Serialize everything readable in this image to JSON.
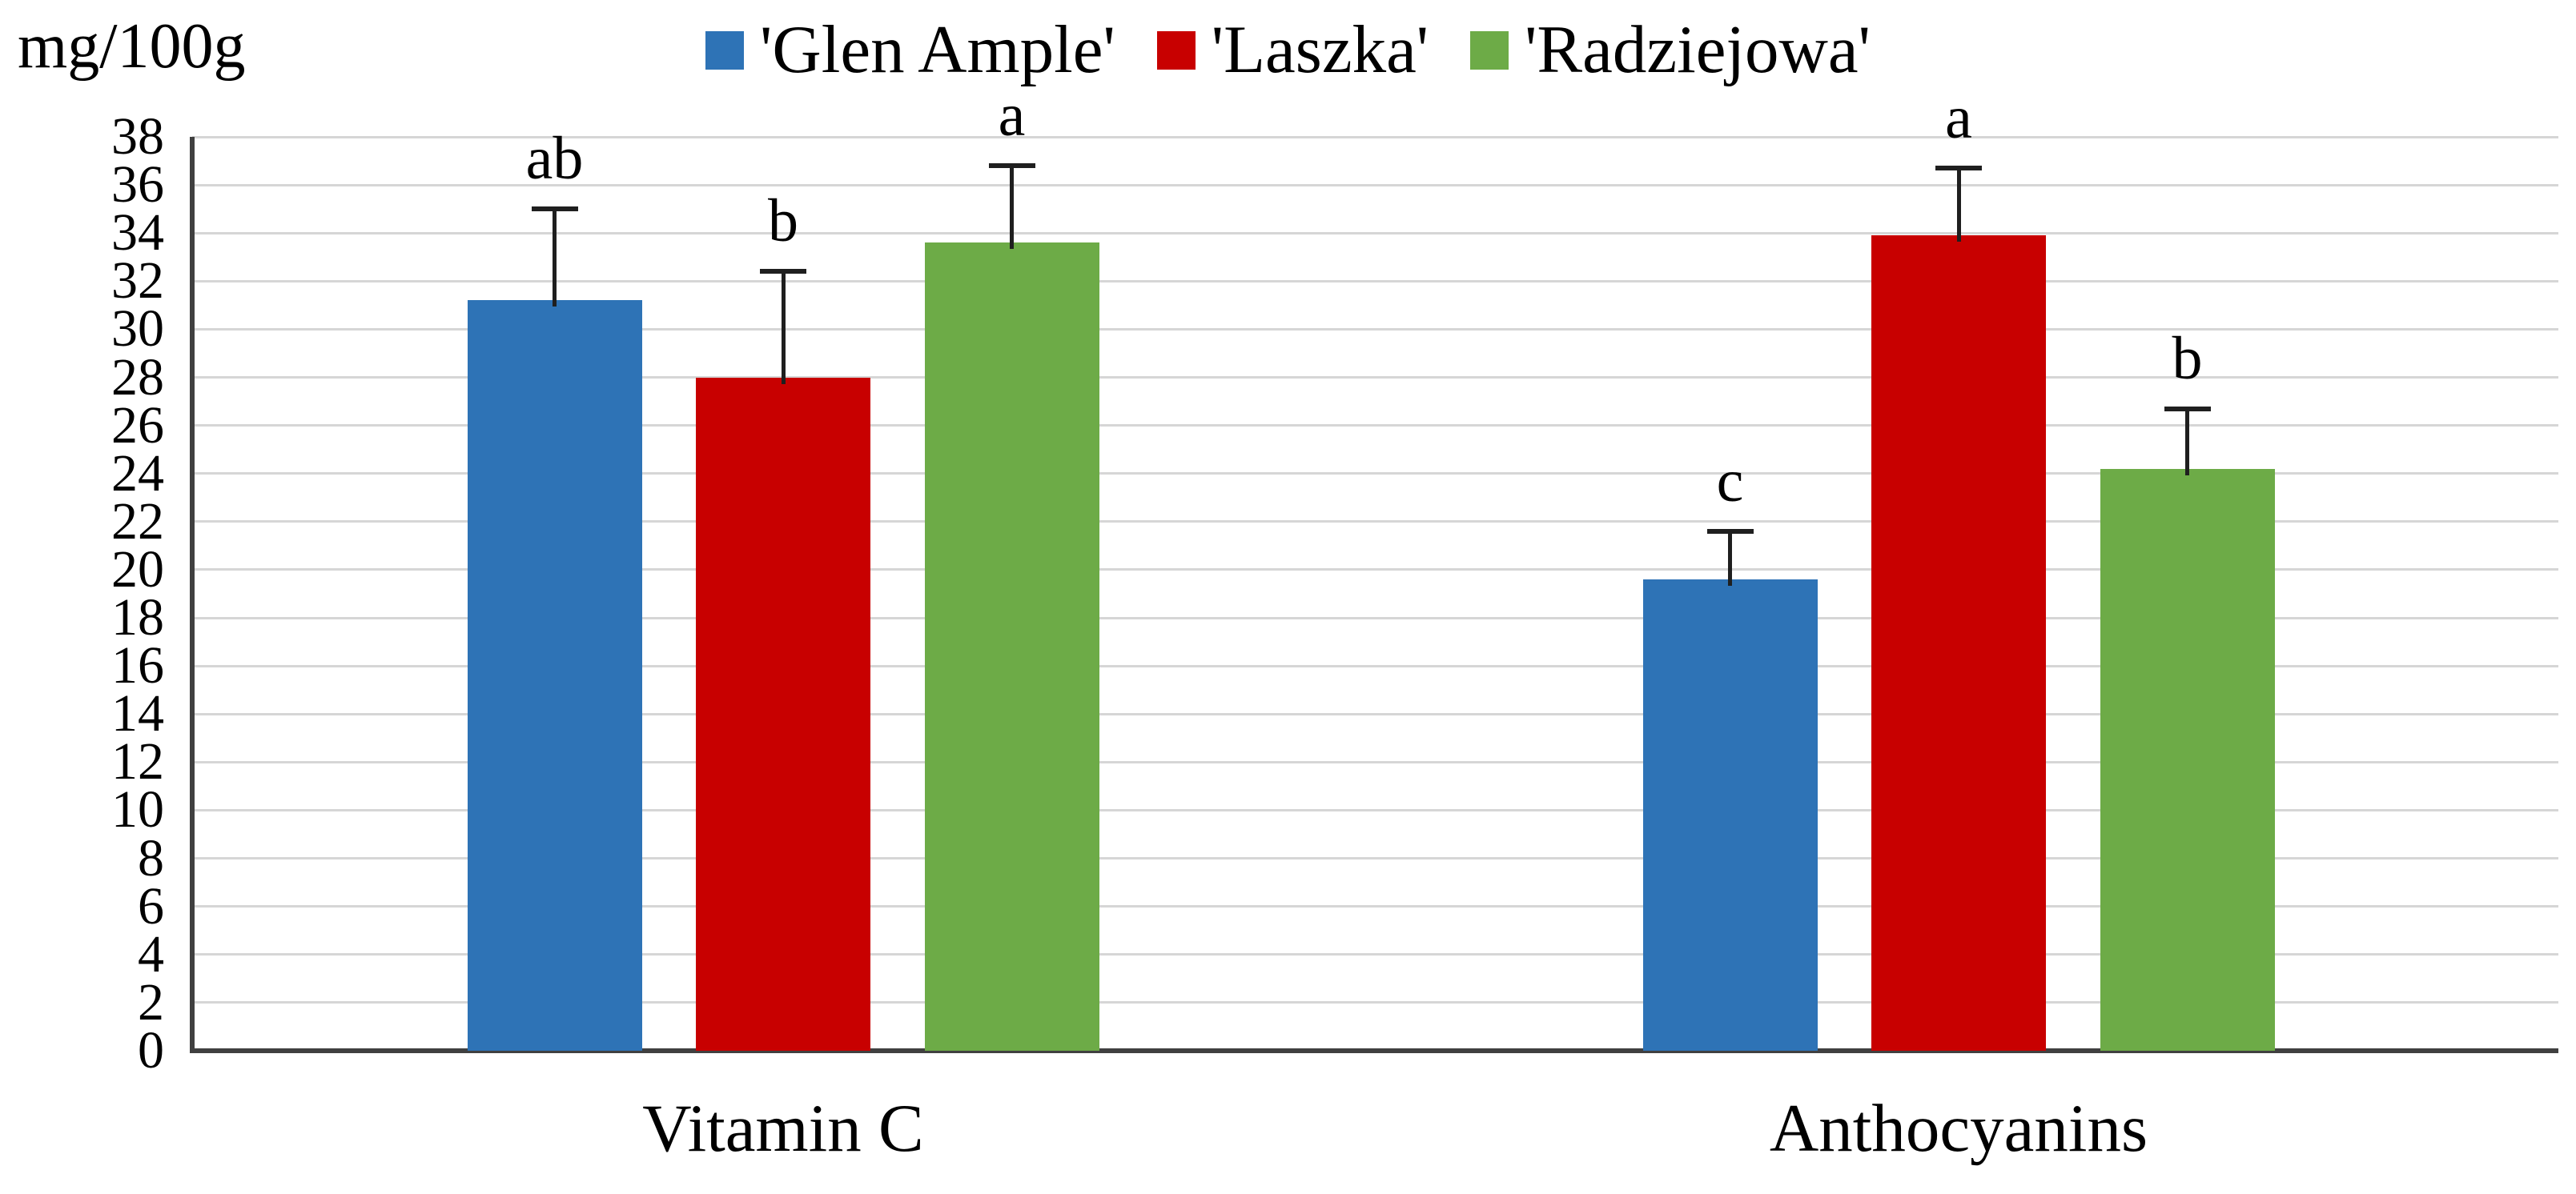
{
  "chart_data": {
    "type": "bar",
    "y_axis_unit_label": "mg/100g",
    "y_min": 0,
    "y_max": 38,
    "y_step": 2,
    "y_tick_labels": [
      "0",
      "2",
      "4",
      "6",
      "8",
      "10",
      "12",
      "14",
      "16",
      "18",
      "20",
      "22",
      "24",
      "26",
      "28",
      "30",
      "32",
      "34",
      "36",
      "38"
    ],
    "categories": [
      "Vitamin C",
      "Anthocyanins"
    ],
    "series": [
      {
        "name": "'Glen Ample'",
        "color": "#2E73B6",
        "values": [
          31.2,
          19.6
        ],
        "error_bars": [
          3.8,
          2.0
        ],
        "significance_letters": [
          "ab",
          "c"
        ]
      },
      {
        "name": "'Laszka'",
        "color": "#C80000",
        "values": [
          28.0,
          33.9
        ],
        "error_bars": [
          4.4,
          2.8
        ],
        "significance_letters": [
          "b",
          "a"
        ]
      },
      {
        "name": "'Radziejowa'",
        "color": "#6DAB47",
        "values": [
          33.6,
          24.2
        ],
        "error_bars": [
          3.2,
          2.5
        ],
        "significance_letters": [
          "a",
          "b"
        ]
      }
    ],
    "legend_position": "top",
    "grid": true,
    "gridline_color": "#D6D6D6",
    "axis_color": "#404040",
    "error_bar_color": "#1F1F1F"
  }
}
